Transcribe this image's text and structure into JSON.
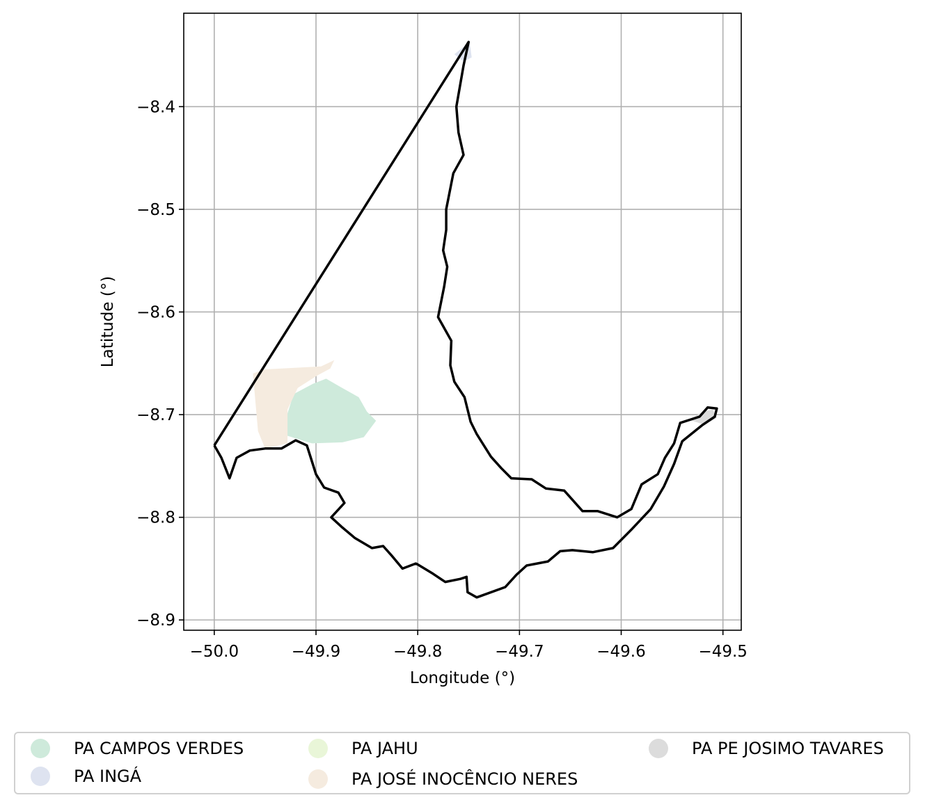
{
  "chart_data": {
    "type": "map",
    "xlabel": "Longitude (°)",
    "ylabel": "Latitude (°)",
    "xlim": [
      -50.03,
      -49.482
    ],
    "ylim": [
      -8.91,
      -8.309
    ],
    "x_ticks": [
      -50.0,
      -49.9,
      -49.8,
      -49.7,
      -49.6,
      -49.5
    ],
    "x_tick_labels": [
      "−50.0",
      "−49.9",
      "−49.8",
      "−49.7",
      "−49.6",
      "−49.5"
    ],
    "y_ticks": [
      -8.4,
      -8.5,
      -8.6,
      -8.7,
      -8.8,
      -8.9
    ],
    "y_tick_labels": [
      "−8.4",
      "−8.5",
      "−8.6",
      "−8.7",
      "−8.8",
      "−8.9"
    ],
    "grid": true,
    "legend_position": "bottom",
    "boundary_color": "#000000",
    "boundary": [
      [
        -50.0,
        -8.73
      ],
      [
        -49.75,
        -8.337
      ],
      [
        -49.755,
        -8.36
      ],
      [
        -49.762,
        -8.4
      ],
      [
        -49.76,
        -8.425
      ],
      [
        -49.755,
        -8.447
      ],
      [
        -49.765,
        -8.465
      ],
      [
        -49.772,
        -8.5
      ],
      [
        -49.772,
        -8.52
      ],
      [
        -49.775,
        -8.54
      ],
      [
        -49.771,
        -8.556
      ],
      [
        -49.774,
        -8.575
      ],
      [
        -49.78,
        -8.605
      ],
      [
        -49.767,
        -8.628
      ],
      [
        -49.768,
        -8.652
      ],
      [
        -49.764,
        -8.668
      ],
      [
        -49.754,
        -8.683
      ],
      [
        -49.748,
        -8.707
      ],
      [
        -49.742,
        -8.719
      ],
      [
        -49.728,
        -8.741
      ],
      [
        -49.718,
        -8.752
      ],
      [
        -49.708,
        -8.762
      ],
      [
        -49.688,
        -8.763
      ],
      [
        -49.674,
        -8.772
      ],
      [
        -49.656,
        -8.774
      ],
      [
        -49.638,
        -8.794
      ],
      [
        -49.623,
        -8.794
      ],
      [
        -49.604,
        -8.8
      ],
      [
        -49.59,
        -8.792
      ],
      [
        -49.58,
        -8.768
      ],
      [
        -49.564,
        -8.758
      ],
      [
        -49.557,
        -8.742
      ],
      [
        -49.548,
        -8.728
      ],
      [
        -49.542,
        -8.708
      ],
      [
        -49.523,
        -8.702
      ],
      [
        -49.515,
        -8.693
      ],
      [
        -49.506,
        -8.694
      ],
      [
        -49.508,
        -8.702
      ],
      [
        -49.52,
        -8.71
      ],
      [
        -49.54,
        -8.726
      ],
      [
        -49.548,
        -8.748
      ],
      [
        -49.558,
        -8.77
      ],
      [
        -49.571,
        -8.792
      ],
      [
        -49.59,
        -8.812
      ],
      [
        -49.608,
        -8.83
      ],
      [
        -49.628,
        -8.834
      ],
      [
        -49.648,
        -8.832
      ],
      [
        -49.66,
        -8.833
      ],
      [
        -49.672,
        -8.843
      ],
      [
        -49.693,
        -8.847
      ],
      [
        -49.703,
        -8.856
      ],
      [
        -49.714,
        -8.868
      ],
      [
        -49.742,
        -8.878
      ],
      [
        -49.751,
        -8.873
      ],
      [
        -49.752,
        -8.858
      ],
      [
        -49.758,
        -8.86
      ],
      [
        -49.773,
        -8.863
      ],
      [
        -49.785,
        -8.855
      ],
      [
        -49.8,
        -8.846
      ],
      [
        -49.802,
        -8.845
      ],
      [
        -49.815,
        -8.85
      ],
      [
        -49.825,
        -8.838
      ],
      [
        -49.834,
        -8.828
      ],
      [
        -49.845,
        -8.83
      ],
      [
        -49.862,
        -8.82
      ],
      [
        -49.874,
        -8.81
      ],
      [
        -49.885,
        -8.8
      ],
      [
        -49.872,
        -8.786
      ],
      [
        -49.878,
        -8.776
      ],
      [
        -49.892,
        -8.771
      ],
      [
        -49.9,
        -8.758
      ],
      [
        -49.909,
        -8.73
      ],
      [
        -49.92,
        -8.725
      ],
      [
        -49.934,
        -8.733
      ],
      [
        -49.95,
        -8.733
      ],
      [
        -49.965,
        -8.735
      ],
      [
        -49.978,
        -8.742
      ],
      [
        -49.985,
        -8.762
      ],
      [
        -49.993,
        -8.742
      ],
      [
        -50.0,
        -8.73
      ]
    ],
    "series": [
      {
        "name": "PA CAMPOS VERDES",
        "color": "#ceeadb",
        "polygon": [
          [
            -49.93,
            -8.705
          ],
          [
            -49.922,
            -8.68
          ],
          [
            -49.903,
            -8.67
          ],
          [
            -49.89,
            -8.665
          ],
          [
            -49.876,
            -8.673
          ],
          [
            -49.858,
            -8.683
          ],
          [
            -49.85,
            -8.697
          ],
          [
            -49.841,
            -8.706
          ],
          [
            -49.853,
            -8.722
          ],
          [
            -49.874,
            -8.727
          ],
          [
            -49.904,
            -8.728
          ],
          [
            -49.93,
            -8.72
          ]
        ]
      },
      {
        "name": "PA INGÁ",
        "color": "#dee3f0",
        "polygon": [
          [
            -49.749,
            -8.337
          ],
          [
            -49.747,
            -8.352
          ],
          [
            -49.755,
            -8.356
          ],
          [
            -49.764,
            -8.349
          ]
        ]
      },
      {
        "name": "PA JAHU",
        "color": "#e9f6d8",
        "polygon": []
      },
      {
        "name": "PA JOSÉ INOCÊNCIO NERES",
        "color": "#f5ebdf",
        "polygon": [
          [
            -49.962,
            -8.66
          ],
          [
            -49.951,
            -8.656
          ],
          [
            -49.895,
            -8.653
          ],
          [
            -49.882,
            -8.647
          ],
          [
            -49.886,
            -8.655
          ],
          [
            -49.899,
            -8.662
          ],
          [
            -49.918,
            -8.674
          ],
          [
            -49.928,
            -8.695
          ],
          [
            -49.928,
            -8.728
          ],
          [
            -49.95,
            -8.733
          ],
          [
            -49.957,
            -8.716
          ]
        ]
      },
      {
        "name": "PA PE JOSIMO TAVARES",
        "color": "#dcdcdc",
        "polygon": [
          [
            -49.533,
            -8.705
          ],
          [
            -49.52,
            -8.697
          ],
          [
            -49.51,
            -8.695
          ],
          [
            -49.506,
            -8.703
          ],
          [
            -49.518,
            -8.71
          ]
        ]
      }
    ]
  },
  "legend": {
    "items": [
      {
        "label": "PA CAMPOS VERDES",
        "color": "#ceeadb"
      },
      {
        "label": "PA INGÁ",
        "color": "#dee3f0"
      },
      {
        "label": "PA JAHU",
        "color": "#e9f6d8"
      },
      {
        "label": "PA JOSÉ INOCÊNCIO NERES",
        "color": "#f5ebdf"
      },
      {
        "label": "PA PE JOSIMO TAVARES",
        "color": "#dcdcdc"
      }
    ]
  }
}
